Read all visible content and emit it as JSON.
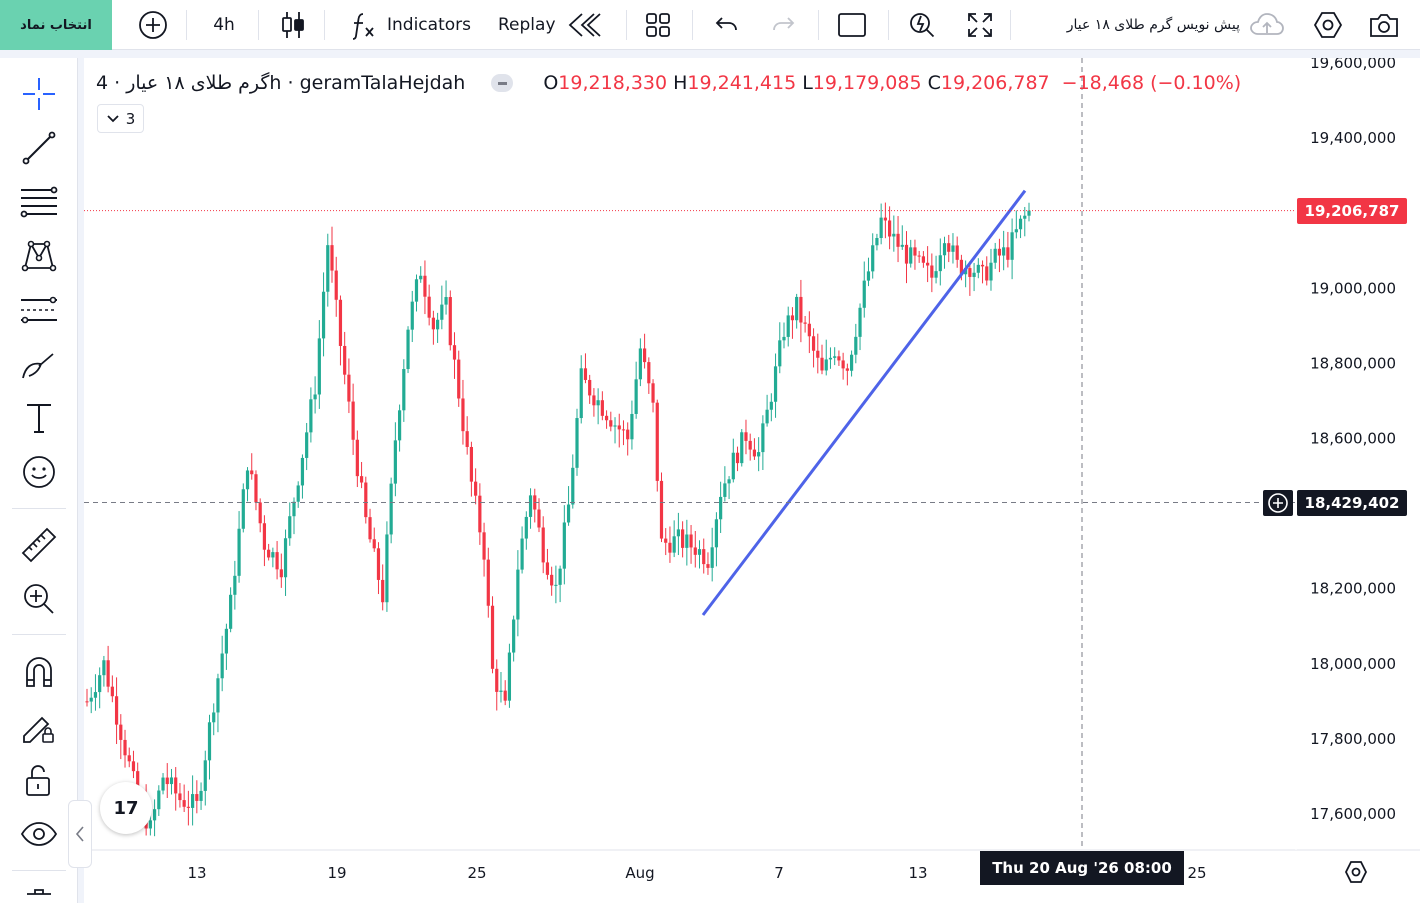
{
  "toolbar": {
    "symbol_button": "انتخاب نماد",
    "interval": "4h",
    "indicators": "Indicators",
    "replay": "Replay",
    "title": "پیش نویس گرم طلای ۱۸ عیار"
  },
  "icons": {
    "add": "plus-circle-icon",
    "chart_type": "candles-icon",
    "fx": "fx-icon",
    "replay": "rewind-icon",
    "layouts": "grid-icon",
    "undo": "undo-icon",
    "redo": "redo-icon",
    "fullscreen_box": "square-icon",
    "alert": "alert-icon",
    "fullscreen": "expand-icon",
    "cloud": "cloud-icon",
    "settings": "hexagon-gear-icon",
    "snapshot": "camera-icon"
  },
  "legend": {
    "symbol": "گرم طلای ۱۸ عیار · 4h · geramTalaHejdah",
    "o_label": "O",
    "o_value": "19,218,330",
    "h_label": "H",
    "h_value": "19,241,415",
    "l_label": "L",
    "l_value": "19,179,085",
    "c_label": "C",
    "c_value": "19,206,787",
    "change": "−18,468 (−0.10%)",
    "indicators_count": "3"
  },
  "price_axis": {
    "last_price": "19,206,787",
    "crosshair_price": "18,429,402"
  },
  "time_axis": {
    "crosshair_time": "Thu 20 Aug '26   08:00"
  },
  "logo": "17",
  "colors": {
    "up": "#22ab94",
    "down": "#f23645",
    "trendline": "#4e63e8",
    "accent_button": "#6ad2b0"
  },
  "chart_data": {
    "type": "candlestick",
    "interval": "4h",
    "y_ticks": [
      19600000,
      19400000,
      19000000,
      18800000,
      18600000,
      18200000,
      18000000,
      17800000,
      17600000
    ],
    "y_tick_labels": [
      "19,600,000",
      "19,400,000",
      "19,000,000",
      "18,800,000",
      "18,600,000",
      "18,200,000",
      "18,000,000",
      "17,800,000",
      "17,600,000"
    ],
    "x_ticks": [
      "13",
      "19",
      "25",
      "Aug",
      "7",
      "13",
      "25"
    ],
    "ylim": [
      17510000,
      19630000
    ],
    "last_close": 19206787,
    "crosshair_value": 18429402,
    "trendline": [
      [
        18130000,
        0
      ],
      [
        19260000,
        1
      ]
    ],
    "waypoints": [
      [
        0,
        17900000
      ],
      [
        4,
        18000000
      ],
      [
        8,
        17820000
      ],
      [
        12,
        17640000
      ],
      [
        15,
        17560000
      ],
      [
        18,
        17700000
      ],
      [
        22,
        17640000
      ],
      [
        26,
        17620000
      ],
      [
        30,
        17900000
      ],
      [
        34,
        18160000
      ],
      [
        38,
        18540000
      ],
      [
        42,
        18320000
      ],
      [
        46,
        18260000
      ],
      [
        50,
        18500000
      ],
      [
        54,
        18740000
      ],
      [
        57,
        19120000
      ],
      [
        60,
        18850000
      ],
      [
        63,
        18600000
      ],
      [
        66,
        18380000
      ],
      [
        70,
        18180000
      ],
      [
        73,
        18600000
      ],
      [
        76,
        18900000
      ],
      [
        79,
        19050000
      ],
      [
        82,
        18900000
      ],
      [
        85,
        18950000
      ],
      [
        88,
        18720000
      ],
      [
        91,
        18480000
      ],
      [
        94,
        18300000
      ],
      [
        96,
        17980000
      ],
      [
        99,
        17880000
      ],
      [
        102,
        18260000
      ],
      [
        105,
        18460000
      ],
      [
        108,
        18300000
      ],
      [
        111,
        18200000
      ],
      [
        114,
        18420000
      ],
      [
        117,
        18760000
      ],
      [
        121,
        18700000
      ],
      [
        125,
        18640000
      ],
      [
        128,
        18600000
      ],
      [
        131,
        18840000
      ],
      [
        134,
        18680000
      ],
      [
        136,
        18320000
      ],
      [
        140,
        18330000
      ],
      [
        144,
        18310000
      ],
      [
        147,
        18280000
      ],
      [
        150,
        18460000
      ],
      [
        153,
        18540000
      ],
      [
        156,
        18610000
      ],
      [
        159,
        18560000
      ],
      [
        162,
        18720000
      ],
      [
        165,
        18890000
      ],
      [
        168,
        18950000
      ],
      [
        171,
        18860000
      ],
      [
        174,
        18770000
      ],
      [
        177,
        18840000
      ],
      [
        180,
        18790000
      ],
      [
        184,
        19000000
      ],
      [
        188,
        19180000
      ],
      [
        191,
        19130000
      ],
      [
        194,
        19090000
      ],
      [
        197,
        19060000
      ],
      [
        200,
        19030000
      ],
      [
        203,
        19150000
      ],
      [
        206,
        19060000
      ],
      [
        209,
        19060000
      ],
      [
        212,
        19030000
      ],
      [
        215,
        19080000
      ],
      [
        218,
        19100000
      ],
      [
        221,
        19170000
      ],
      [
        223,
        19207000
      ]
    ]
  }
}
